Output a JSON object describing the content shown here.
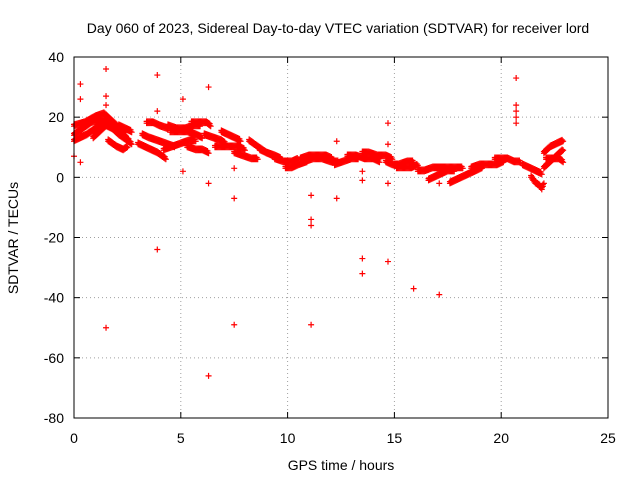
{
  "chart_data": {
    "type": "scatter",
    "title": "Day 060 of 2023, Sidereal Day-to-day VTEC variation (SDTVAR) for receiver lord",
    "xlabel": "GPS time / hours",
    "ylabel": "SDTVAR / TECUs",
    "xlim": [
      0,
      25
    ],
    "ylim": [
      -80,
      40
    ],
    "xticks": [
      0,
      5,
      10,
      15,
      20,
      25
    ],
    "yticks": [
      -80,
      -60,
      -40,
      -20,
      0,
      20,
      40
    ],
    "xtick_labels": [
      "0",
      "5",
      "10",
      "15",
      "20",
      "25"
    ],
    "ytick_labels": [
      "-80",
      "-60",
      "-40",
      "-20",
      "0",
      "20",
      "40"
    ],
    "grid": true,
    "marker": "plus",
    "color": "#ff0000",
    "series": [
      {
        "name": "SDTVAR",
        "tracks": [
          [
            [
              0.0,
              14
            ],
            [
              0.4,
              16
            ],
            [
              0.8,
              18
            ],
            [
              1.2,
              19
            ],
            [
              1.6,
              18
            ],
            [
              2.0,
              15
            ],
            [
              2.4,
              13
            ],
            [
              2.6,
              12
            ]
          ],
          [
            [
              0.0,
              17
            ],
            [
              0.5,
              18
            ],
            [
              1.0,
              20
            ],
            [
              1.4,
              21
            ],
            [
              1.7,
              19
            ],
            [
              2.0,
              17
            ],
            [
              2.4,
              14
            ]
          ],
          [
            [
              0.0,
              12
            ],
            [
              0.3,
              13
            ],
            [
              0.6,
              14
            ],
            [
              1.0,
              16
            ],
            [
              1.3,
              18
            ],
            [
              1.6,
              17
            ],
            [
              2.0,
              15
            ]
          ],
          [
            [
              1.6,
              12
            ],
            [
              2.0,
              10
            ],
            [
              2.3,
              9
            ],
            [
              2.5,
              10
            ]
          ],
          [
            [
              0.9,
              13
            ],
            [
              1.2,
              15
            ],
            [
              1.5,
              17
            ],
            [
              1.8,
              16
            ],
            [
              2.1,
              14
            ],
            [
              2.5,
              12
            ],
            [
              2.7,
              11
            ]
          ],
          [
            [
              2.1,
              17
            ],
            [
              2.4,
              16
            ],
            [
              2.7,
              15
            ]
          ],
          [
            [
              3.4,
              18
            ],
            [
              3.7,
              18
            ],
            [
              4.0,
              17
            ],
            [
              4.4,
              16
            ]
          ],
          [
            [
              3.2,
              14
            ],
            [
              3.5,
              13
            ],
            [
              3.9,
              12
            ],
            [
              4.3,
              11
            ],
            [
              4.7,
              10
            ]
          ],
          [
            [
              3.0,
              11
            ],
            [
              3.3,
              10
            ],
            [
              3.6,
              9
            ],
            [
              3.9,
              8
            ],
            [
              4.1,
              7
            ],
            [
              4.3,
              6
            ]
          ],
          [
            [
              4.2,
              9
            ],
            [
              4.6,
              10
            ],
            [
              5.0,
              11
            ],
            [
              5.4,
              12
            ],
            [
              5.7,
              12
            ]
          ],
          [
            [
              4.4,
              17
            ],
            [
              4.8,
              16
            ],
            [
              5.2,
              16
            ],
            [
              5.6,
              17
            ],
            [
              5.9,
              17
            ]
          ],
          [
            [
              4.5,
              15
            ],
            [
              4.9,
              15
            ],
            [
              5.3,
              15
            ],
            [
              5.7,
              14
            ],
            [
              6.0,
              13
            ]
          ],
          [
            [
              5.3,
              10
            ],
            [
              5.7,
              9
            ],
            [
              6.0,
              9
            ],
            [
              6.3,
              8
            ]
          ],
          [
            [
              5.5,
              18
            ],
            [
              5.9,
              18
            ],
            [
              6.2,
              18
            ],
            [
              6.4,
              17
            ]
          ],
          [
            [
              6.1,
              14
            ],
            [
              6.5,
              13
            ],
            [
              6.9,
              12
            ],
            [
              7.1,
              11
            ]
          ],
          [
            [
              6.6,
              10
            ],
            [
              7.0,
              10
            ],
            [
              7.4,
              10
            ],
            [
              7.7,
              10
            ],
            [
              8.0,
              9
            ]
          ],
          [
            [
              6.9,
              15
            ],
            [
              7.2,
              14
            ],
            [
              7.5,
              13
            ],
            [
              7.8,
              12
            ]
          ],
          [
            [
              7.5,
              8
            ],
            [
              7.9,
              7
            ],
            [
              8.3,
              6
            ],
            [
              8.6,
              6
            ]
          ],
          [
            [
              8.2,
              12
            ],
            [
              8.6,
              10
            ],
            [
              9.0,
              8
            ],
            [
              9.3,
              7
            ]
          ],
          [
            [
              8.7,
              9
            ],
            [
              9.0,
              8
            ],
            [
              9.4,
              7
            ],
            [
              9.7,
              6
            ]
          ],
          [
            [
              9.4,
              6
            ],
            [
              9.8,
              5
            ],
            [
              10.2,
              5
            ],
            [
              10.5,
              6
            ]
          ],
          [
            [
              9.9,
              3
            ],
            [
              10.2,
              3
            ],
            [
              10.5,
              4
            ],
            [
              10.9,
              5
            ]
          ],
          [
            [
              10.6,
              6
            ],
            [
              11.0,
              7
            ],
            [
              11.4,
              7
            ],
            [
              11.8,
              7
            ],
            [
              12.1,
              6
            ]
          ],
          [
            [
              10.8,
              5
            ],
            [
              11.2,
              6
            ],
            [
              11.6,
              6
            ],
            [
              12.0,
              5
            ],
            [
              12.4,
              5
            ]
          ],
          [
            [
              12.2,
              4
            ],
            [
              12.6,
              5
            ],
            [
              13.0,
              6
            ],
            [
              13.3,
              6
            ]
          ],
          [
            [
              12.8,
              7
            ],
            [
              13.2,
              7
            ],
            [
              13.6,
              6
            ],
            [
              14.0,
              6
            ],
            [
              14.3,
              5
            ]
          ],
          [
            [
              13.5,
              8
            ],
            [
              13.8,
              8
            ],
            [
              14.2,
              7
            ],
            [
              14.6,
              7
            ],
            [
              14.9,
              6
            ]
          ],
          [
            [
              14.6,
              5
            ],
            [
              14.9,
              4
            ],
            [
              15.2,
              4
            ],
            [
              15.6,
              5
            ],
            [
              15.9,
              5
            ]
          ],
          [
            [
              15.1,
              3
            ],
            [
              15.5,
              3
            ],
            [
              15.8,
              3
            ],
            [
              16.1,
              4
            ]
          ],
          [
            [
              16.1,
              2
            ],
            [
              16.4,
              2
            ],
            [
              16.8,
              3
            ],
            [
              17.1,
              3
            ],
            [
              17.4,
              3
            ]
          ],
          [
            [
              16.6,
              -1
            ],
            [
              16.9,
              0
            ],
            [
              17.2,
              1
            ],
            [
              17.5,
              2
            ],
            [
              17.8,
              2
            ]
          ],
          [
            [
              17.6,
              -2
            ],
            [
              17.9,
              -1
            ],
            [
              18.2,
              0
            ],
            [
              18.5,
              1
            ],
            [
              18.8,
              2
            ],
            [
              19.1,
              3
            ]
          ],
          [
            [
              17.0,
              3
            ],
            [
              17.4,
              3
            ],
            [
              17.8,
              3
            ],
            [
              18.2,
              3
            ]
          ],
          [
            [
              18.6,
              3
            ],
            [
              19.0,
              4
            ],
            [
              19.4,
              4
            ],
            [
              19.8,
              4
            ],
            [
              20.1,
              5
            ]
          ],
          [
            [
              19.7,
              6
            ],
            [
              20.0,
              6
            ],
            [
              20.3,
              6
            ],
            [
              20.6,
              5
            ],
            [
              20.9,
              5
            ]
          ],
          [
            [
              21.0,
              4
            ],
            [
              21.3,
              3
            ],
            [
              21.6,
              2
            ],
            [
              21.9,
              1
            ]
          ],
          [
            [
              21.4,
              0
            ],
            [
              21.6,
              -2
            ],
            [
              21.8,
              -3
            ],
            [
              21.9,
              -4
            ],
            [
              22.0,
              -2
            ]
          ],
          [
            [
              22.0,
              3
            ],
            [
              22.3,
              5
            ],
            [
              22.6,
              7
            ],
            [
              22.9,
              9
            ]
          ],
          [
            [
              22.0,
              8
            ],
            [
              22.3,
              10
            ],
            [
              22.6,
              11
            ],
            [
              22.9,
              12
            ]
          ],
          [
            [
              22.1,
              6
            ],
            [
              22.4,
              6
            ],
            [
              22.7,
              6
            ],
            [
              22.9,
              5
            ]
          ]
        ],
        "outliers": [
          [
            0.0,
            7
          ],
          [
            0.3,
            5
          ],
          [
            0.3,
            26
          ],
          [
            0.3,
            31
          ],
          [
            1.5,
            36
          ],
          [
            1.5,
            27
          ],
          [
            1.5,
            24
          ],
          [
            1.5,
            -50
          ],
          [
            3.9,
            34
          ],
          [
            3.9,
            22
          ],
          [
            3.9,
            -24
          ],
          [
            5.1,
            26
          ],
          [
            5.1,
            2
          ],
          [
            6.3,
            30
          ],
          [
            6.3,
            -2
          ],
          [
            6.3,
            -66
          ],
          [
            7.5,
            3
          ],
          [
            7.5,
            -7
          ],
          [
            7.5,
            -49
          ],
          [
            11.1,
            -6
          ],
          [
            11.1,
            -14
          ],
          [
            11.1,
            -16
          ],
          [
            11.1,
            -49
          ],
          [
            12.3,
            12
          ],
          [
            12.3,
            -7
          ],
          [
            13.5,
            2
          ],
          [
            13.5,
            -1
          ],
          [
            13.5,
            -27
          ],
          [
            13.5,
            -32
          ],
          [
            14.7,
            18
          ],
          [
            14.7,
            11
          ],
          [
            14.7,
            -2
          ],
          [
            14.7,
            -28
          ],
          [
            15.9,
            -37
          ],
          [
            17.1,
            -2
          ],
          [
            17.1,
            -39
          ],
          [
            20.7,
            33
          ],
          [
            20.7,
            24
          ],
          [
            20.7,
            22
          ],
          [
            20.7,
            20
          ],
          [
            20.7,
            18
          ]
        ]
      }
    ]
  }
}
